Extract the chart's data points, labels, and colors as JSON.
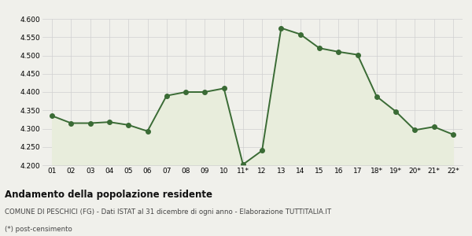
{
  "x_labels": [
    "01",
    "02",
    "03",
    "04",
    "05",
    "06",
    "07",
    "08",
    "09",
    "10",
    "11*",
    "12",
    "13",
    "14",
    "15",
    "16",
    "17",
    "18*",
    "19*",
    "20*",
    "21*",
    "22*"
  ],
  "y_values": [
    4335,
    4315,
    4315,
    4318,
    4310,
    4293,
    4390,
    4400,
    4400,
    4410,
    4202,
    4240,
    4575,
    4558,
    4520,
    4510,
    4502,
    4388,
    4347,
    4296,
    4305,
    4284
  ],
  "line_color": "#3a6b35",
  "fill_color": "#e8eddc",
  "marker_color": "#3a6b35",
  "background_color": "#f0f0eb",
  "plot_bg_color": "#f0f0eb",
  "ylim": [
    4200,
    4600
  ],
  "yticks": [
    4200,
    4250,
    4300,
    4350,
    4400,
    4450,
    4500,
    4550,
    4600
  ],
  "title": "Andamento della popolazione residente",
  "subtitle": "COMUNE DI PESCHICI (FG) - Dati ISTAT al 31 dicembre di ogni anno - Elaborazione TUTTITALIA.IT",
  "note": "(*) post-censimento",
  "title_color": "#111111",
  "subtitle_color": "#444444",
  "grid_color": "#d0d0d0",
  "line_width": 1.4,
  "marker_size": 4.0
}
